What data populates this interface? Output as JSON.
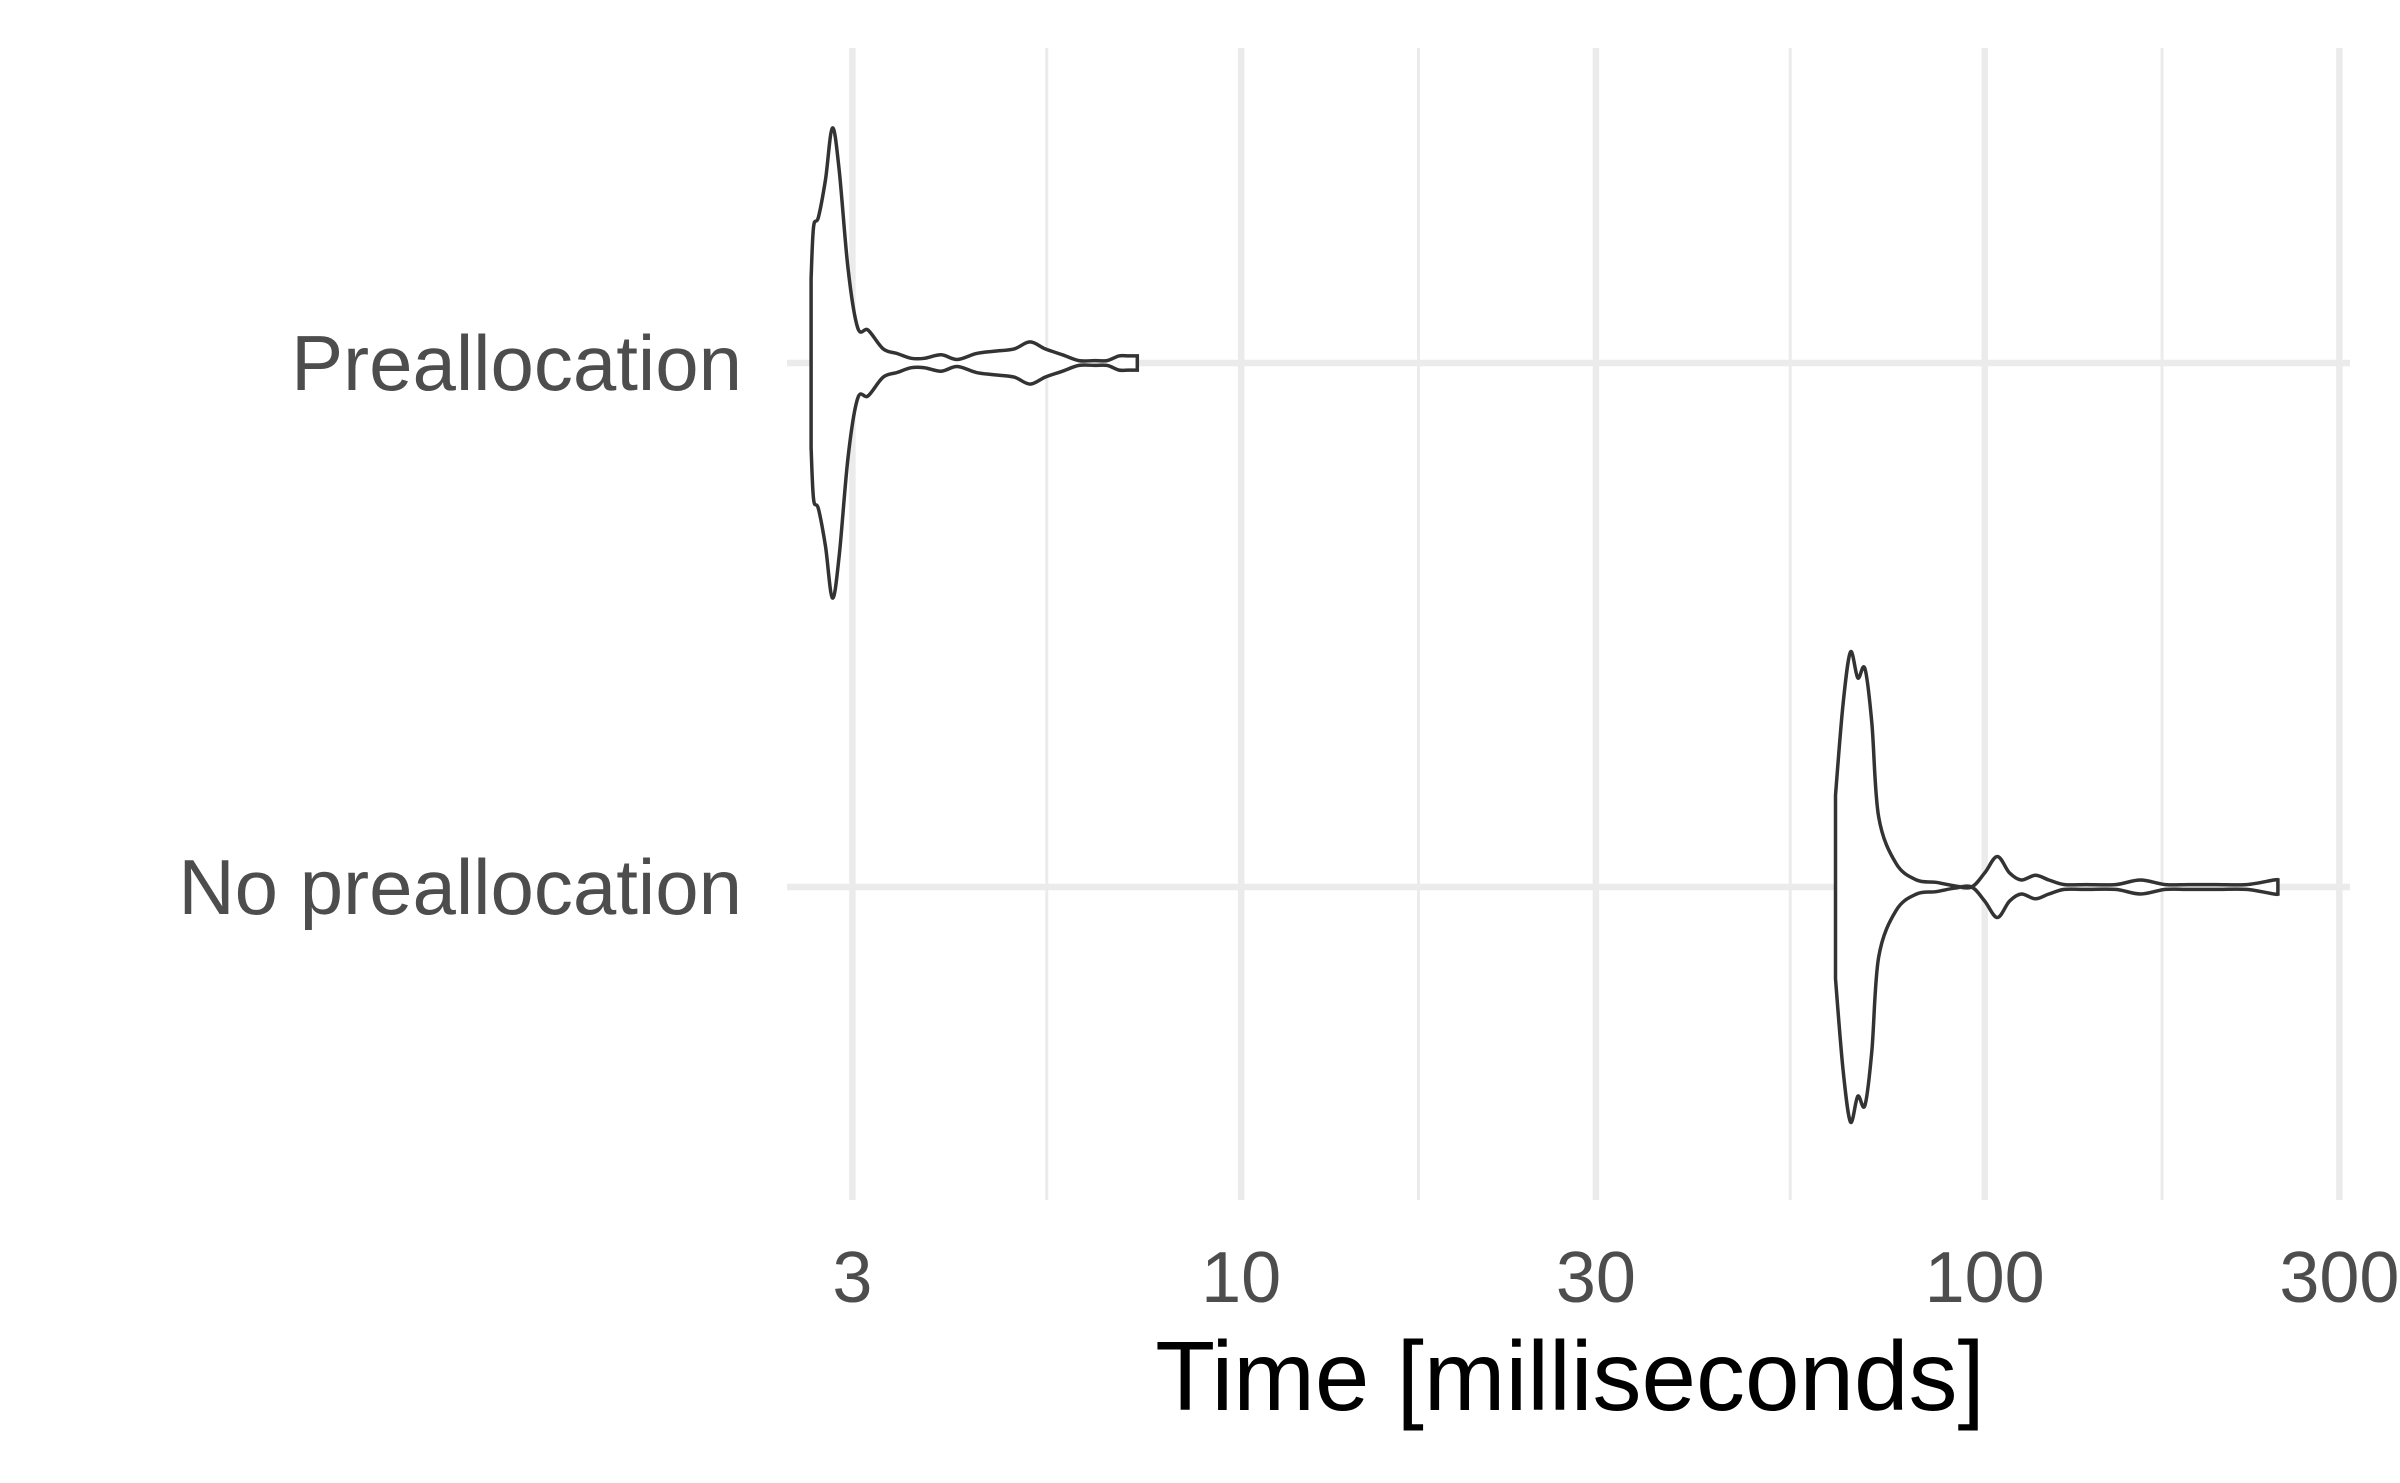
{
  "chart_data": {
    "type": "violin",
    "orientation": "horizontal",
    "xlabel": "Time [milliseconds]",
    "ylabel": "",
    "xscale": "log10",
    "xlim": [
      2.45,
      310
    ],
    "xticks": [
      3,
      10,
      30,
      100,
      300
    ],
    "xtick_labels": [
      "3",
      "10",
      "30",
      "100",
      "300"
    ],
    "minor_xticks": [
      5.477,
      17.32,
      54.77,
      173.2
    ],
    "grid": true,
    "colors": {
      "outline": "#333333",
      "fill": "#ffffff",
      "grid": "#ebebeb",
      "text": "#4d4d4d"
    },
    "categories": [
      "Preallocation",
      "No preallocation"
    ],
    "series": [
      {
        "name": "Preallocation",
        "x": [
          2.64,
          2.66,
          2.7,
          2.76,
          2.82,
          2.88,
          2.96,
          3.05,
          3.15,
          3.3,
          3.45,
          3.6,
          3.75,
          3.95,
          4.15,
          4.4,
          4.65,
          4.95,
          5.2,
          5.45,
          5.75,
          6.05,
          6.35,
          6.6,
          6.85,
          7.05,
          7.25
        ],
        "density": [
          0.36,
          0.58,
          0.62,
          0.78,
          1.0,
          0.82,
          0.4,
          0.15,
          0.14,
          0.06,
          0.04,
          0.02,
          0.02,
          0.035,
          0.015,
          0.04,
          0.05,
          0.06,
          0.09,
          0.06,
          0.035,
          0.01,
          0.01,
          0.01,
          0.03,
          0.03,
          0.03
        ]
      },
      {
        "name": "No preallocation",
        "x": [
          63,
          64.5,
          66,
          67.5,
          69,
          70.5,
          72,
          76,
          81,
          86,
          91,
          96,
          100,
          104,
          108,
          112,
          117,
          122,
          128,
          137,
          150,
          162,
          175,
          188,
          205,
          225,
          245,
          248
        ],
        "density": [
          0.39,
          0.78,
          1.0,
          0.89,
          0.93,
          0.7,
          0.3,
          0.1,
          0.03,
          0.02,
          0.005,
          0.0,
          0.06,
          0.13,
          0.06,
          0.03,
          0.05,
          0.03,
          0.01,
          0.01,
          0.01,
          0.03,
          0.01,
          0.01,
          0.01,
          0.01,
          0.03,
          0.03
        ]
      }
    ]
  }
}
